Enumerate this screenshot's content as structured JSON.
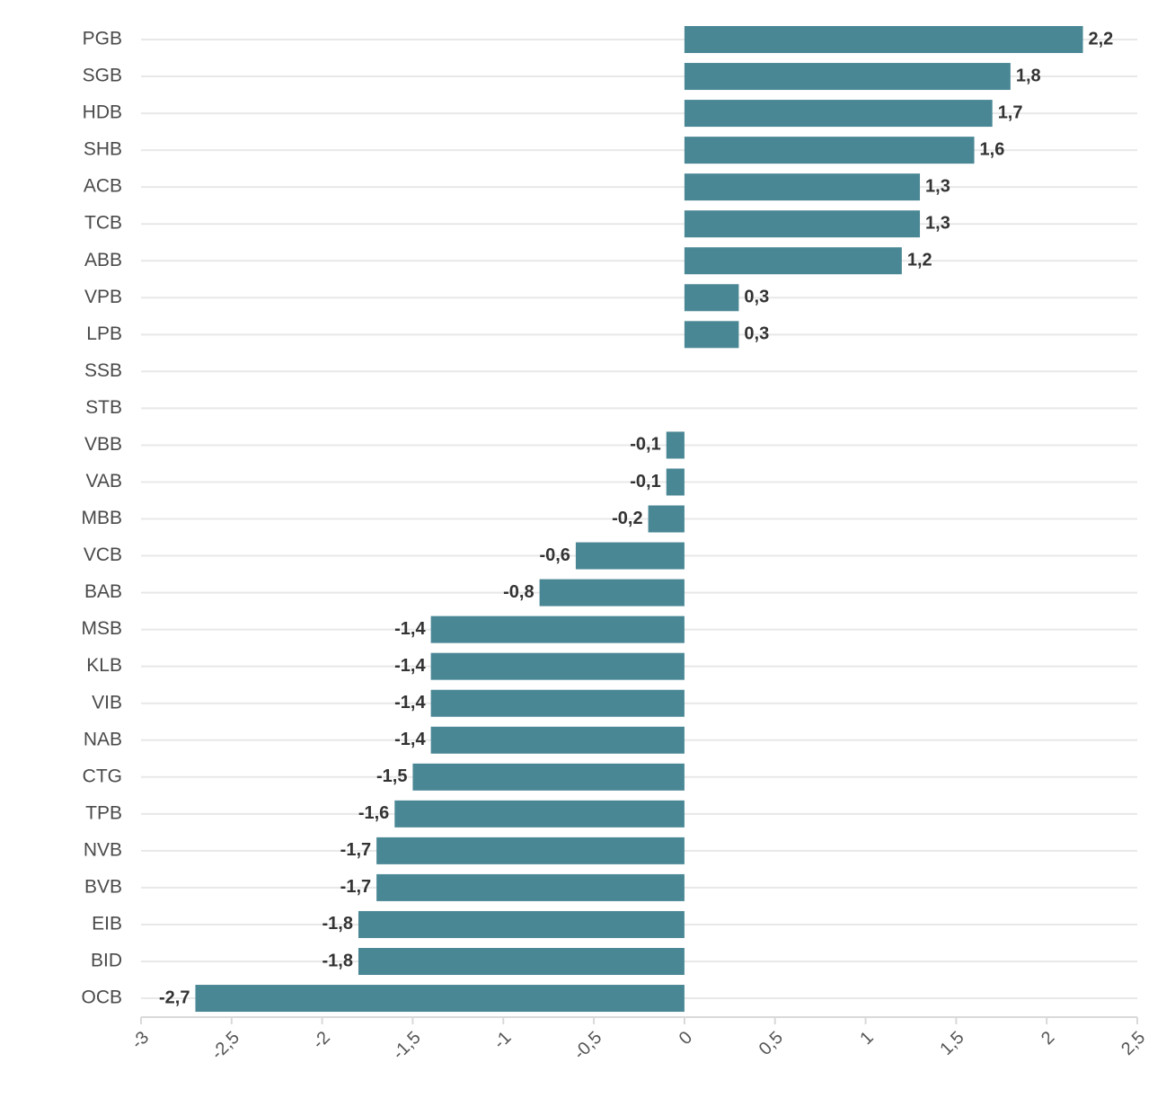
{
  "chart_data": {
    "type": "bar",
    "orientation": "horizontal",
    "categories": [
      "PGB",
      "SGB",
      "HDB",
      "SHB",
      "ACB",
      "TCB",
      "ABB",
      "VPB",
      "LPB",
      "SSB",
      "STB",
      "VBB",
      "VAB",
      "MBB",
      "VCB",
      "BAB",
      "MSB",
      "KLB",
      "VIB",
      "NAB",
      "CTG",
      "TPB",
      "NVB",
      "BVB",
      "EIB",
      "BID",
      "OCB"
    ],
    "values": [
      2.2,
      1.8,
      1.7,
      1.6,
      1.3,
      1.3,
      1.2,
      0.3,
      0.3,
      null,
      null,
      -0.1,
      -0.1,
      -0.2,
      -0.6,
      -0.8,
      -1.4,
      -1.4,
      -1.4,
      -1.4,
      -1.5,
      -1.6,
      -1.7,
      -1.7,
      -1.8,
      -1.8,
      -2.7
    ],
    "value_labels": [
      "2,2",
      "1,8",
      "1,7",
      "1,6",
      "1,3",
      "1,3",
      "1,2",
      "0,3",
      "0,3",
      "",
      "",
      "-0,1",
      "-0,1",
      "-0,2",
      "-0,6",
      "-0,8",
      "-1,4",
      "-1,4",
      "-1,4",
      "-1,4",
      "-1,5",
      "-1,6",
      "-1,7",
      "-1,7",
      "-1,8",
      "-1,8",
      "-2,7"
    ],
    "xlim": [
      -3,
      2.5
    ],
    "xticks": [
      -3,
      -2.5,
      -2,
      -1.5,
      -1,
      -0.5,
      0,
      0.5,
      1,
      1.5,
      2,
      2.5
    ],
    "xtick_labels": [
      "-3",
      "-2,5",
      "-2",
      "-1,5",
      "-1",
      "-0,5",
      "0",
      "0,5",
      "1",
      "1,5",
      "2",
      "2,5"
    ],
    "title": "",
    "xlabel": "",
    "ylabel": "",
    "grid": "horizontal",
    "bar_color": "#4a8795"
  }
}
